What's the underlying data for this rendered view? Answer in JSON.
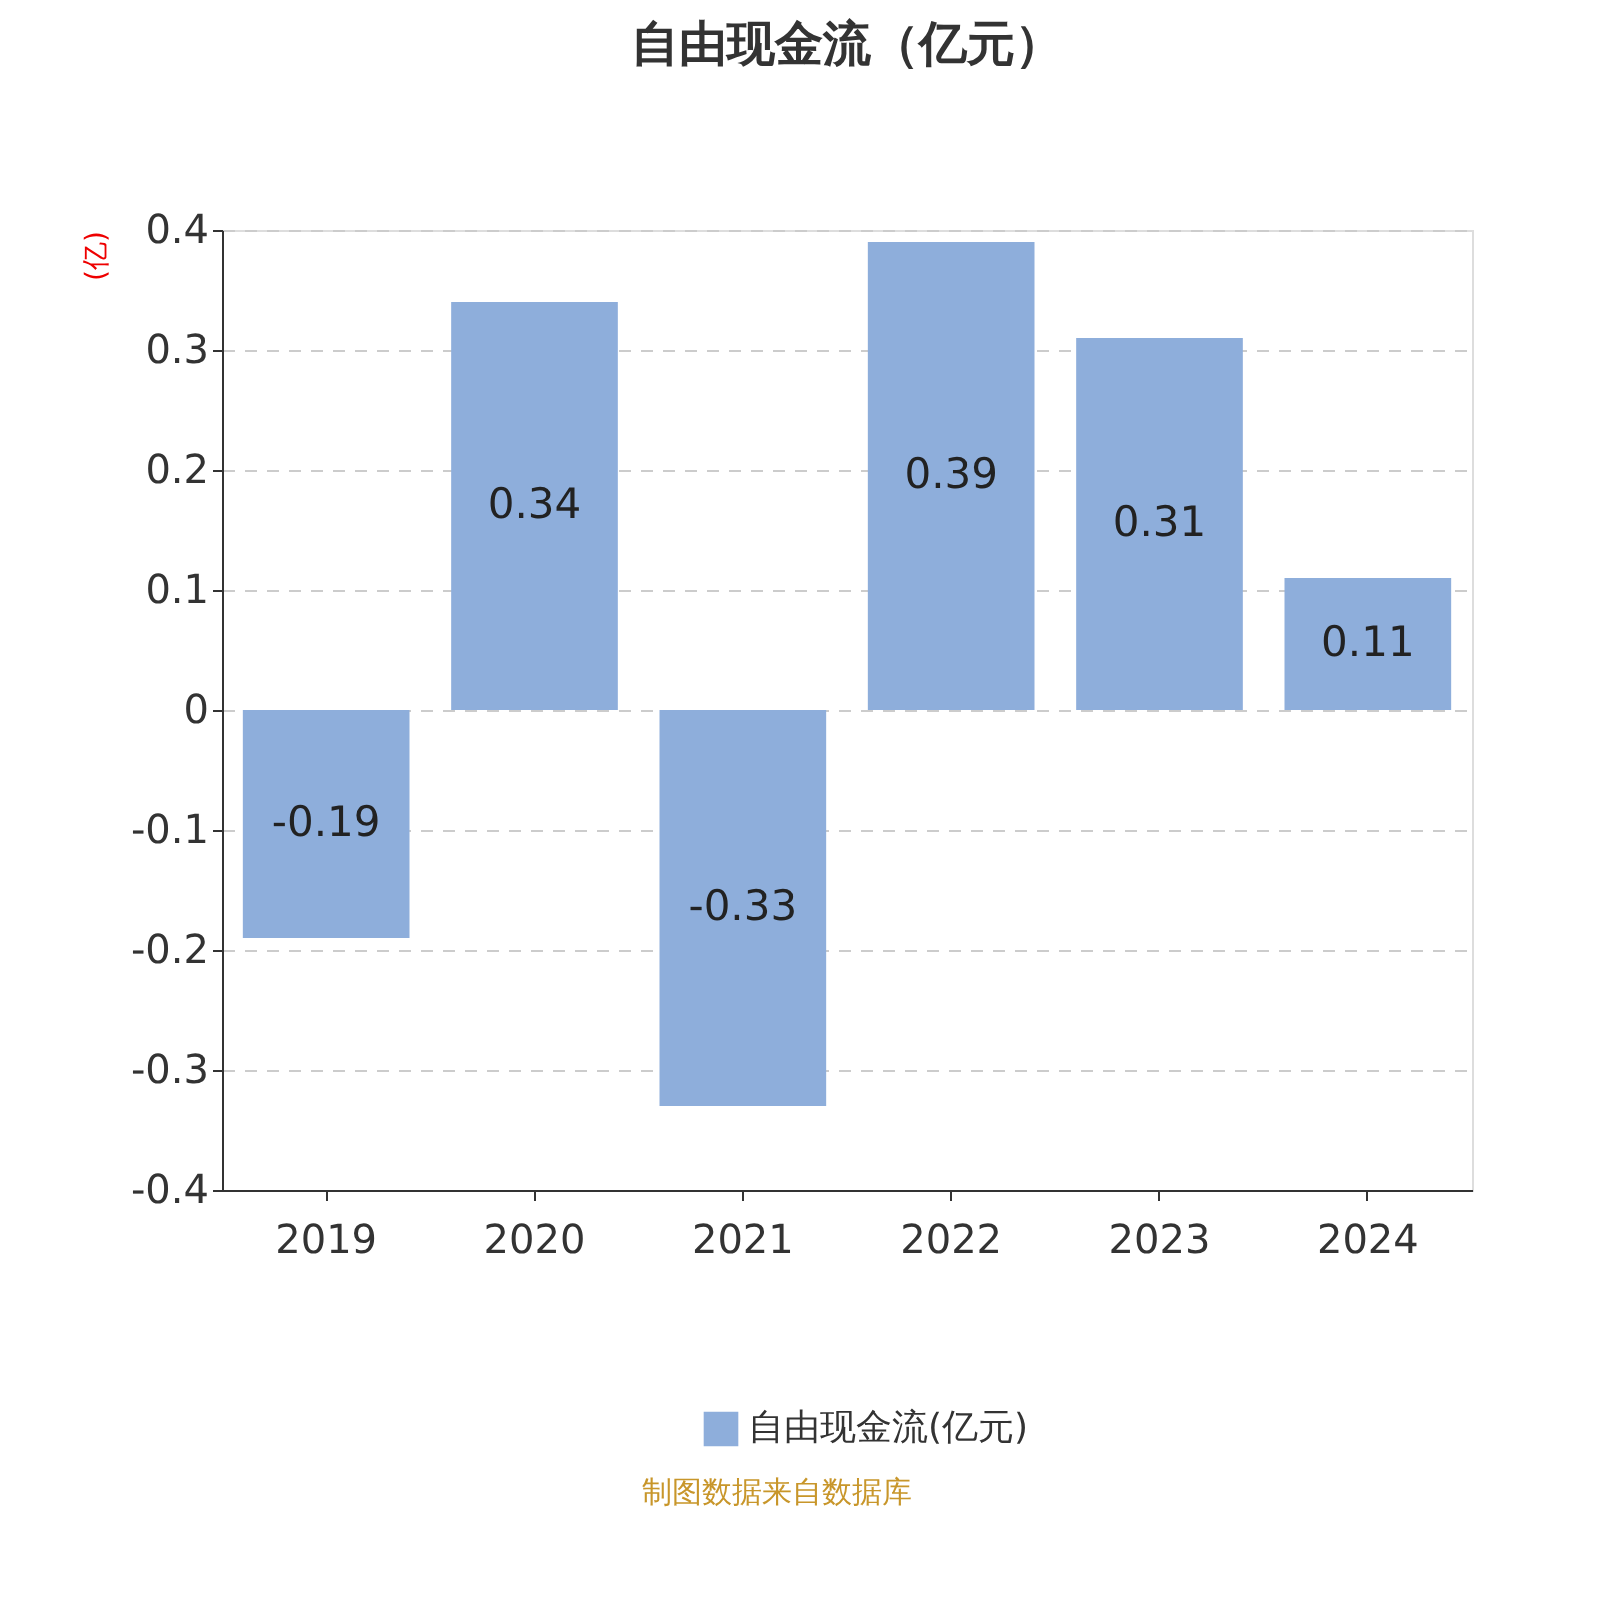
{
  "chart_data": {
    "type": "bar",
    "title": "自由现金流（亿元）",
    "ylabel": "(亿)",
    "categories": [
      "2019",
      "2020",
      "2021",
      "2022",
      "2023",
      "2024"
    ],
    "series": [
      {
        "name": "自由现金流(亿元)",
        "color": "#8eaedb",
        "values": [
          -0.19,
          0.34,
          -0.33,
          0.39,
          0.31,
          0.11
        ]
      }
    ],
    "ylim": [
      -0.4,
      0.4
    ],
    "yticks": [
      -0.4,
      -0.3,
      -0.2,
      -0.1,
      0,
      0.1,
      0.2,
      0.3,
      0.4
    ],
    "grid": "y",
    "legend": "bottom",
    "data_labels": true,
    "annotations": [
      "制图数据来自数据库"
    ]
  }
}
